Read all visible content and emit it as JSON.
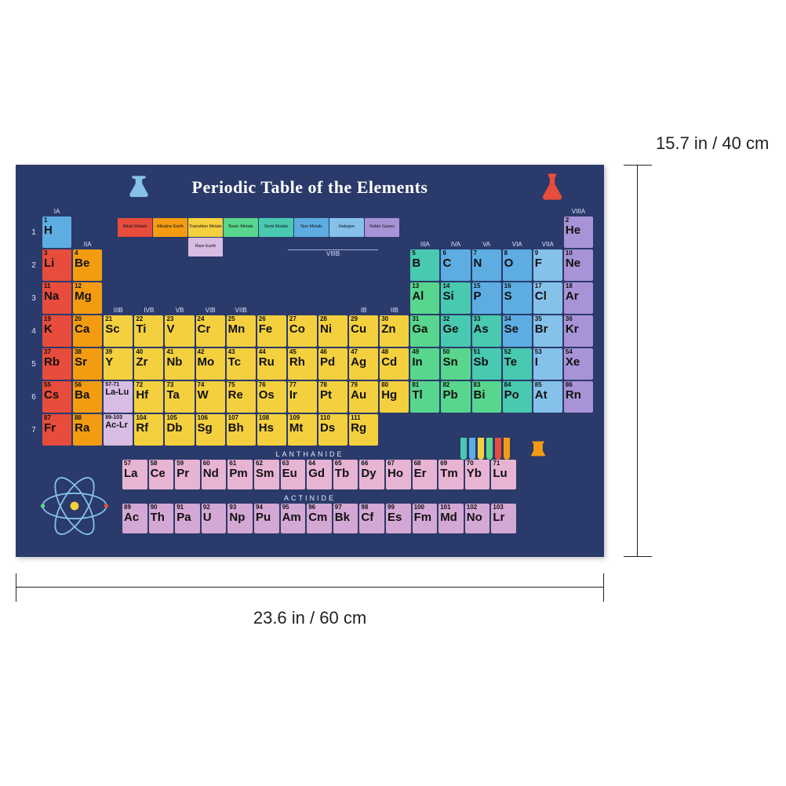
{
  "title": "Periodic Table of the Elements",
  "dimensions": {
    "width_label": "23.6 in / 60 cm",
    "height_label": "15.7 in / 40 cm"
  },
  "poster": {
    "background": "#2a3a6a",
    "title_color": "#ffffff",
    "title_fontsize": 22
  },
  "group_labels": [
    "IA",
    "IIA",
    "IIIB",
    "IVB",
    "VB",
    "VIB",
    "VIIB",
    "VIIIB",
    "VIIIB",
    "VIIIB",
    "IB",
    "IIB",
    "IIIA",
    "IVA",
    "VA",
    "VIA",
    "VIIA",
    "VIIIA"
  ],
  "period_labels": [
    "1",
    "2",
    "3",
    "4",
    "5",
    "6",
    "7"
  ],
  "categories": {
    "alkali": {
      "label": "Alkali Metals",
      "color": "#e74c3c"
    },
    "alkaline": {
      "label": "Alkaline Earth",
      "color": "#f39c12"
    },
    "transition": {
      "label": "Transition Metals",
      "color": "#f4d03f"
    },
    "basic": {
      "label": "Basic Metals",
      "color": "#58d68d"
    },
    "semi": {
      "label": "Semi Metals",
      "color": "#48c9b0"
    },
    "nonmetal": {
      "label": "Non Metals",
      "color": "#5dade2"
    },
    "halogen": {
      "label": "Halogen",
      "color": "#85c1e9"
    },
    "noble": {
      "label": "Noble Gases",
      "color": "#a893d6"
    },
    "rare": {
      "label": "Rare Earth",
      "color": "#d7bde2"
    }
  },
  "legend_order": [
    "alkali",
    "alkaline",
    "transition",
    "basic",
    "semi",
    "nonmetal",
    "halogen",
    "noble"
  ],
  "rare_note": "Rare Earth",
  "elements": [
    {
      "n": 1,
      "s": "H",
      "p": 1,
      "g": 1,
      "c": "nonmetal"
    },
    {
      "n": 2,
      "s": "He",
      "p": 1,
      "g": 18,
      "c": "noble"
    },
    {
      "n": 3,
      "s": "Li",
      "p": 2,
      "g": 1,
      "c": "alkali"
    },
    {
      "n": 4,
      "s": "Be",
      "p": 2,
      "g": 2,
      "c": "alkaline"
    },
    {
      "n": 5,
      "s": "B",
      "p": 2,
      "g": 13,
      "c": "semi"
    },
    {
      "n": 6,
      "s": "C",
      "p": 2,
      "g": 14,
      "c": "nonmetal"
    },
    {
      "n": 7,
      "s": "N",
      "p": 2,
      "g": 15,
      "c": "nonmetal"
    },
    {
      "n": 8,
      "s": "O",
      "p": 2,
      "g": 16,
      "c": "nonmetal"
    },
    {
      "n": 9,
      "s": "F",
      "p": 2,
      "g": 17,
      "c": "halogen"
    },
    {
      "n": 10,
      "s": "Ne",
      "p": 2,
      "g": 18,
      "c": "noble"
    },
    {
      "n": 11,
      "s": "Na",
      "p": 3,
      "g": 1,
      "c": "alkali"
    },
    {
      "n": 12,
      "s": "Mg",
      "p": 3,
      "g": 2,
      "c": "alkaline"
    },
    {
      "n": 13,
      "s": "Al",
      "p": 3,
      "g": 13,
      "c": "basic"
    },
    {
      "n": 14,
      "s": "Si",
      "p": 3,
      "g": 14,
      "c": "semi"
    },
    {
      "n": 15,
      "s": "P",
      "p": 3,
      "g": 15,
      "c": "nonmetal"
    },
    {
      "n": 16,
      "s": "S",
      "p": 3,
      "g": 16,
      "c": "nonmetal"
    },
    {
      "n": 17,
      "s": "Cl",
      "p": 3,
      "g": 17,
      "c": "halogen"
    },
    {
      "n": 18,
      "s": "Ar",
      "p": 3,
      "g": 18,
      "c": "noble"
    },
    {
      "n": 19,
      "s": "K",
      "p": 4,
      "g": 1,
      "c": "alkali"
    },
    {
      "n": 20,
      "s": "Ca",
      "p": 4,
      "g": 2,
      "c": "alkaline"
    },
    {
      "n": 21,
      "s": "Sc",
      "p": 4,
      "g": 3,
      "c": "transition"
    },
    {
      "n": 22,
      "s": "Ti",
      "p": 4,
      "g": 4,
      "c": "transition"
    },
    {
      "n": 23,
      "s": "V",
      "p": 4,
      "g": 5,
      "c": "transition"
    },
    {
      "n": 24,
      "s": "Cr",
      "p": 4,
      "g": 6,
      "c": "transition"
    },
    {
      "n": 25,
      "s": "Mn",
      "p": 4,
      "g": 7,
      "c": "transition"
    },
    {
      "n": 26,
      "s": "Fe",
      "p": 4,
      "g": 8,
      "c": "transition"
    },
    {
      "n": 27,
      "s": "Co",
      "p": 4,
      "g": 9,
      "c": "transition"
    },
    {
      "n": 28,
      "s": "Ni",
      "p": 4,
      "g": 10,
      "c": "transition"
    },
    {
      "n": 29,
      "s": "Cu",
      "p": 4,
      "g": 11,
      "c": "transition"
    },
    {
      "n": 30,
      "s": "Zn",
      "p": 4,
      "g": 12,
      "c": "transition"
    },
    {
      "n": 31,
      "s": "Ga",
      "p": 4,
      "g": 13,
      "c": "basic"
    },
    {
      "n": 32,
      "s": "Ge",
      "p": 4,
      "g": 14,
      "c": "semi"
    },
    {
      "n": 33,
      "s": "As",
      "p": 4,
      "g": 15,
      "c": "semi"
    },
    {
      "n": 34,
      "s": "Se",
      "p": 4,
      "g": 16,
      "c": "nonmetal"
    },
    {
      "n": 35,
      "s": "Br",
      "p": 4,
      "g": 17,
      "c": "halogen"
    },
    {
      "n": 36,
      "s": "Kr",
      "p": 4,
      "g": 18,
      "c": "noble"
    },
    {
      "n": 37,
      "s": "Rb",
      "p": 5,
      "g": 1,
      "c": "alkali"
    },
    {
      "n": 38,
      "s": "Sr",
      "p": 5,
      "g": 2,
      "c": "alkaline"
    },
    {
      "n": 39,
      "s": "Y",
      "p": 5,
      "g": 3,
      "c": "transition"
    },
    {
      "n": 40,
      "s": "Zr",
      "p": 5,
      "g": 4,
      "c": "transition"
    },
    {
      "n": 41,
      "s": "Nb",
      "p": 5,
      "g": 5,
      "c": "transition"
    },
    {
      "n": 42,
      "s": "Mo",
      "p": 5,
      "g": 6,
      "c": "transition"
    },
    {
      "n": 43,
      "s": "Tc",
      "p": 5,
      "g": 7,
      "c": "transition"
    },
    {
      "n": 44,
      "s": "Ru",
      "p": 5,
      "g": 8,
      "c": "transition"
    },
    {
      "n": 45,
      "s": "Rh",
      "p": 5,
      "g": 9,
      "c": "transition"
    },
    {
      "n": 46,
      "s": "Pd",
      "p": 5,
      "g": 10,
      "c": "transition"
    },
    {
      "n": 47,
      "s": "Ag",
      "p": 5,
      "g": 11,
      "c": "transition"
    },
    {
      "n": 48,
      "s": "Cd",
      "p": 5,
      "g": 12,
      "c": "transition"
    },
    {
      "n": 49,
      "s": "In",
      "p": 5,
      "g": 13,
      "c": "basic"
    },
    {
      "n": 50,
      "s": "Sn",
      "p": 5,
      "g": 14,
      "c": "basic"
    },
    {
      "n": 51,
      "s": "Sb",
      "p": 5,
      "g": 15,
      "c": "semi"
    },
    {
      "n": 52,
      "s": "Te",
      "p": 5,
      "g": 16,
      "c": "semi"
    },
    {
      "n": 53,
      "s": "I",
      "p": 5,
      "g": 17,
      "c": "halogen"
    },
    {
      "n": 54,
      "s": "Xe",
      "p": 5,
      "g": 18,
      "c": "noble"
    },
    {
      "n": 55,
      "s": "Cs",
      "p": 6,
      "g": 1,
      "c": "alkali"
    },
    {
      "n": 56,
      "s": "Ba",
      "p": 6,
      "g": 2,
      "c": "alkaline"
    },
    {
      "n": "57-71",
      "s": "La-Lu",
      "p": 6,
      "g": 3,
      "c": "rare",
      "range": true
    },
    {
      "n": 72,
      "s": "Hf",
      "p": 6,
      "g": 4,
      "c": "transition"
    },
    {
      "n": 73,
      "s": "Ta",
      "p": 6,
      "g": 5,
      "c": "transition"
    },
    {
      "n": 74,
      "s": "W",
      "p": 6,
      "g": 6,
      "c": "transition"
    },
    {
      "n": 75,
      "s": "Re",
      "p": 6,
      "g": 7,
      "c": "transition"
    },
    {
      "n": 76,
      "s": "Os",
      "p": 6,
      "g": 8,
      "c": "transition"
    },
    {
      "n": 77,
      "s": "Ir",
      "p": 6,
      "g": 9,
      "c": "transition"
    },
    {
      "n": 78,
      "s": "Pt",
      "p": 6,
      "g": 10,
      "c": "transition"
    },
    {
      "n": 79,
      "s": "Au",
      "p": 6,
      "g": 11,
      "c": "transition"
    },
    {
      "n": 80,
      "s": "Hg",
      "p": 6,
      "g": 12,
      "c": "transition"
    },
    {
      "n": 81,
      "s": "Tl",
      "p": 6,
      "g": 13,
      "c": "basic"
    },
    {
      "n": 82,
      "s": "Pb",
      "p": 6,
      "g": 14,
      "c": "basic"
    },
    {
      "n": 83,
      "s": "Bi",
      "p": 6,
      "g": 15,
      "c": "basic"
    },
    {
      "n": 84,
      "s": "Po",
      "p": 6,
      "g": 16,
      "c": "semi"
    },
    {
      "n": 85,
      "s": "At",
      "p": 6,
      "g": 17,
      "c": "halogen"
    },
    {
      "n": 86,
      "s": "Rn",
      "p": 6,
      "g": 18,
      "c": "noble"
    },
    {
      "n": 87,
      "s": "Fr",
      "p": 7,
      "g": 1,
      "c": "alkali"
    },
    {
      "n": 88,
      "s": "Ra",
      "p": 7,
      "g": 2,
      "c": "alkaline"
    },
    {
      "n": "89-103",
      "s": "Ac-Lr",
      "p": 7,
      "g": 3,
      "c": "rare",
      "range": true
    },
    {
      "n": 104,
      "s": "Rf",
      "p": 7,
      "g": 4,
      "c": "transition"
    },
    {
      "n": 105,
      "s": "Db",
      "p": 7,
      "g": 5,
      "c": "transition"
    },
    {
      "n": 106,
      "s": "Sg",
      "p": 7,
      "g": 6,
      "c": "transition"
    },
    {
      "n": 107,
      "s": "Bh",
      "p": 7,
      "g": 7,
      "c": "transition"
    },
    {
      "n": 108,
      "s": "Hs",
      "p": 7,
      "g": 8,
      "c": "transition"
    },
    {
      "n": 109,
      "s": "Mt",
      "p": 7,
      "g": 9,
      "c": "transition"
    },
    {
      "n": 110,
      "s": "Ds",
      "p": 7,
      "g": 10,
      "c": "transition"
    },
    {
      "n": 111,
      "s": "Rg",
      "p": 7,
      "g": 11,
      "c": "transition"
    }
  ],
  "lanthanide": {
    "title": "LANTHANIDE",
    "items": [
      {
        "n": 57,
        "s": "La"
      },
      {
        "n": 58,
        "s": "Ce"
      },
      {
        "n": 59,
        "s": "Pr"
      },
      {
        "n": 60,
        "s": "Nd"
      },
      {
        "n": 61,
        "s": "Pm"
      },
      {
        "n": 62,
        "s": "Sm"
      },
      {
        "n": 63,
        "s": "Eu"
      },
      {
        "n": 64,
        "s": "Gd"
      },
      {
        "n": 65,
        "s": "Tb"
      },
      {
        "n": 66,
        "s": "Dy"
      },
      {
        "n": 67,
        "s": "Ho"
      },
      {
        "n": 68,
        "s": "Er"
      },
      {
        "n": 69,
        "s": "Tm"
      },
      {
        "n": 70,
        "s": "Yb"
      },
      {
        "n": 71,
        "s": "Lu"
      }
    ],
    "color": "#e8b4d4"
  },
  "actinide": {
    "title": "ACTINIDE",
    "items": [
      {
        "n": 89,
        "s": "Ac"
      },
      {
        "n": 90,
        "s": "Th"
      },
      {
        "n": 91,
        "s": "Pa"
      },
      {
        "n": 92,
        "s": "U"
      },
      {
        "n": 93,
        "s": "Np"
      },
      {
        "n": 94,
        "s": "Pu"
      },
      {
        "n": 95,
        "s": "Am"
      },
      {
        "n": 96,
        "s": "Cm"
      },
      {
        "n": 97,
        "s": "Bk"
      },
      {
        "n": 98,
        "s": "Cf"
      },
      {
        "n": 99,
        "s": "Es"
      },
      {
        "n": 100,
        "s": "Fm"
      },
      {
        "n": 101,
        "s": "Md"
      },
      {
        "n": 102,
        "s": "No"
      },
      {
        "n": 103,
        "s": "Lr"
      }
    ],
    "color": "#d4a8d4"
  },
  "viiib_label": "VIIIB",
  "tube_colors": [
    "#48c9b0",
    "#5dade2",
    "#f4d03f",
    "#58d68d",
    "#e74c3c",
    "#f39c12"
  ],
  "dim_line_color": "#222222"
}
